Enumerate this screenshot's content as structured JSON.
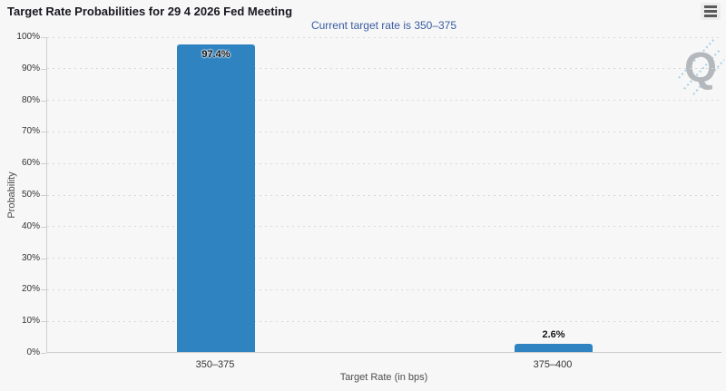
{
  "title": "Target Rate Probabilities for 29 4 2026 Fed Meeting",
  "subtitle": "Current target rate is 350–375",
  "menu": {
    "tooltip": "Chart context menu"
  },
  "watermark_letter": "Q",
  "colors": {
    "bar": "#2e83c0",
    "subtitle": "#3a5ca2",
    "watermark_gray": "#b4b8bd",
    "watermark_blue": "#a9cfe6"
  },
  "chart_data": {
    "type": "bar",
    "title": "Target Rate Probabilities for 29 4 2026 Fed Meeting",
    "subtitle": "Current target rate is 350–375",
    "categories": [
      "350–375",
      "375–400"
    ],
    "values": [
      97.4,
      2.6
    ],
    "data_labels": [
      "97.4%",
      "2.6%"
    ],
    "xlabel": "Target Rate (in bps)",
    "ylabel": "Probability",
    "ylim": [
      0,
      100
    ],
    "ytick_step": 10,
    "ytick_labels": [
      "0%",
      "10%",
      "20%",
      "30%",
      "40%",
      "50%",
      "60%",
      "70%",
      "80%",
      "90%",
      "100%"
    ],
    "grid": "horizontal-dotted",
    "legend": "none",
    "bar_color": "#2e83c0"
  }
}
